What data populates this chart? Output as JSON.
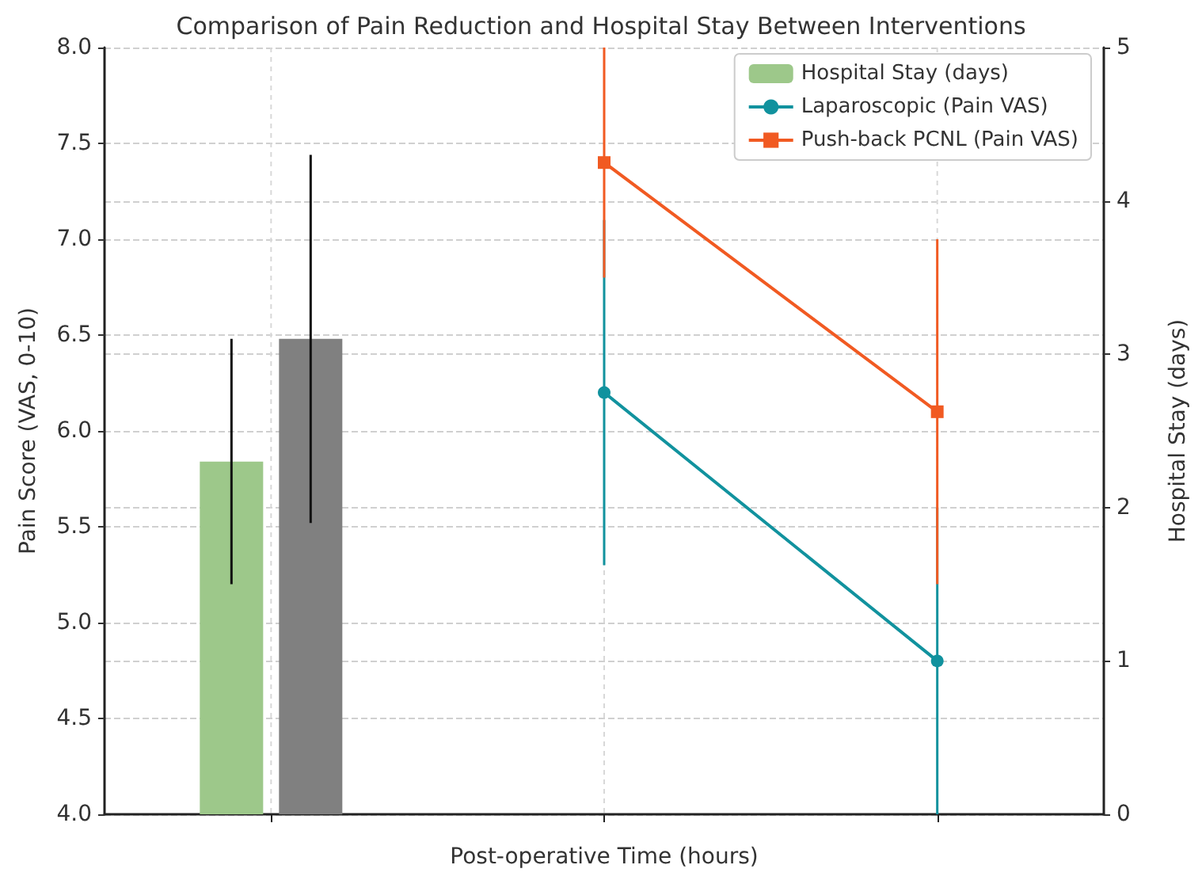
{
  "chart_data": {
    "type": "line",
    "title": "Comparison of Pain Reduction and Hospital Stay Between Interventions",
    "xlabel": "Post-operative Time (hours)",
    "ylabel": "Pain Score (VAS, 0-10)",
    "y2label": "Hospital Stay (days)",
    "categories": [
      null,
      null,
      null
    ],
    "series": [
      {
        "type": "bar",
        "axis": "y2",
        "name": "Hospital Stay (days)",
        "color": "#9dc88a",
        "values": [
          2.3,
          null,
          null
        ],
        "errors": [
          0.8,
          null,
          null
        ]
      },
      {
        "type": "bar",
        "axis": "y2",
        "color": "#808080",
        "values": [
          3.1,
          null,
          null
        ],
        "errors": [
          1.2,
          null,
          null
        ]
      },
      {
        "name": "Laparoscopic (Pain VAS)",
        "color": "#11929e",
        "marker": "circle",
        "values": [
          null,
          6.2,
          4.8
        ],
        "errors": [
          null,
          0.9,
          0.8
        ]
      },
      {
        "name": "Push-back PCNL (Pain VAS)",
        "color": "#f15a22",
        "marker": "square",
        "values": [
          null,
          7.4,
          6.1
        ],
        "errors": [
          null,
          0.6,
          0.9
        ]
      }
    ],
    "ylim": [
      4,
      8
    ],
    "yticks": [
      {
        "value": 4,
        "label": "4.0"
      },
      {
        "value": 4.5,
        "label": "4.5"
      },
      {
        "value": 5,
        "label": "5.0"
      },
      {
        "value": 5.5,
        "label": "5.5"
      },
      {
        "value": 6,
        "label": "6.0"
      },
      {
        "value": 6.5,
        "label": "6.5"
      },
      {
        "value": 7,
        "label": "7.0"
      },
      {
        "value": 7.5,
        "label": "7.5"
      },
      {
        "value": 8,
        "label": "8.0"
      }
    ],
    "y2lim": [
      0,
      5
    ],
    "y2ticks": [
      0,
      1,
      2,
      3,
      4,
      5
    ],
    "grid": true,
    "legend": "top right",
    "tick_labels": "y"
  }
}
